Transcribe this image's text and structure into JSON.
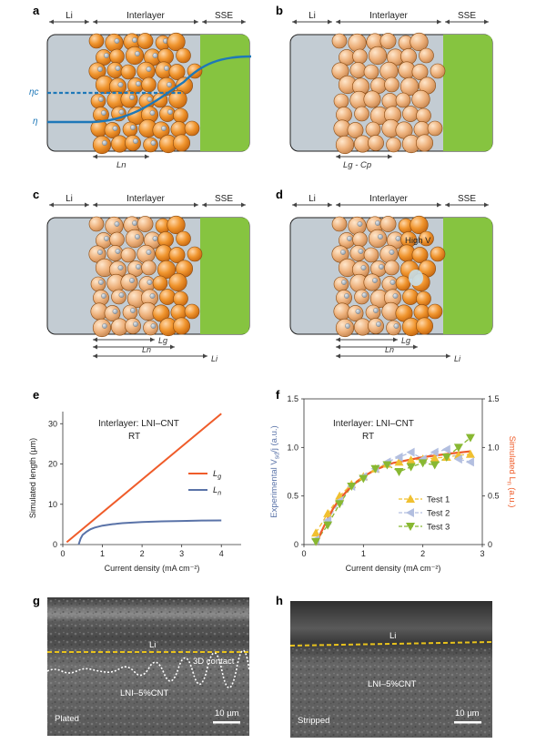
{
  "panels": {
    "a": {
      "label": "a",
      "li": "Li",
      "interlayer": "Interlayer",
      "sse": "SSE",
      "eta_c": "ηc",
      "eta": "η",
      "ln": "Ln"
    },
    "b": {
      "label": "b",
      "li": "Li",
      "interlayer": "Interlayer",
      "sse": "SSE",
      "formula_lg": "Lg",
      "formula_sep": " - ",
      "formula_cp": "Cp"
    },
    "c": {
      "label": "c",
      "li": "Li",
      "interlayer": "Interlayer",
      "sse": "SSE",
      "lg": "Lg",
      "ln": "Ln",
      "li_len": "Li"
    },
    "d": {
      "label": "d",
      "li": "Li",
      "interlayer": "Interlayer",
      "sse": "SSE",
      "high_v": "High V",
      "lg": "Lg",
      "ln": "Ln",
      "li_len": "Li"
    },
    "e": {
      "label": "e",
      "annotation_1": "Interlayer: LNI–CNT",
      "annotation_2": "RT"
    },
    "f": {
      "label": "f",
      "annotation_1": "Interlayer: LNI–CNT",
      "annotation_2": "RT"
    },
    "g": {
      "label": "g",
      "li": "Li",
      "contact": "3D contact",
      "material": "LNI–5%CNT",
      "state": "Plated",
      "scale": "10 µm"
    },
    "h": {
      "label": "h",
      "li": "Li",
      "material": "LNI–5%CNT",
      "state": "Stripped",
      "scale": "10 µm"
    }
  },
  "colors": {
    "li_gray": "#c3ccd3",
    "particle_orange": "#ef8a24",
    "particle_light": "#efb27e",
    "sse_green": "#86c440",
    "curve_blue": "#1e78b8",
    "lg_orange": "#ef5c2a",
    "ln_blue": "#5a73a8",
    "test1": "#f0c030",
    "test2": "#b3bfe0",
    "test3": "#88b832",
    "scale_yellow": "#e8c21c"
  },
  "chart_data": [
    {
      "type": "line",
      "panel": "e",
      "xlabel": "Current density (mA cm⁻²)",
      "ylabel": "Simulated length (µm)",
      "xlim": [
        0,
        4.5
      ],
      "ylim": [
        0,
        33
      ],
      "xticks": [
        "0",
        "1",
        "2",
        "3",
        "4"
      ],
      "yticks": [
        "0",
        "10",
        "20",
        "30"
      ],
      "legend_position": "right",
      "series": [
        {
          "name": "Lg",
          "x": [
            0.1,
            4.0
          ],
          "y": [
            0.6,
            32.5
          ]
        },
        {
          "name": "Ln",
          "x": [
            0.4,
            0.45,
            0.5,
            0.6,
            0.7,
            0.8,
            1.0,
            1.25,
            1.5,
            2.0,
            2.5,
            3.0,
            3.5,
            4.0
          ],
          "y": [
            0,
            1.5,
            2.4,
            3.2,
            3.8,
            4.2,
            4.7,
            5.05,
            5.3,
            5.6,
            5.75,
            5.85,
            5.95,
            6.0
          ]
        }
      ]
    },
    {
      "type": "scatter",
      "panel": "f",
      "xlabel": "Current density (mA cm⁻²)",
      "ylabel_left": "Experimental V",
      "ylabel_left_sub": "sd",
      "ylabel_left_tail": "/j (a.u.)",
      "ylabel_right": "Simulated L",
      "ylabel_right_sub": "n",
      "ylabel_right_tail": " (a.u.)",
      "xlim": [
        0,
        3.0
      ],
      "ylim": [
        0,
        1.5
      ],
      "xticks": [
        "0",
        "1",
        "2",
        "3"
      ],
      "yticks": [
        "0",
        "0.5",
        "1.0",
        "1.5"
      ],
      "legend_position": "bottom-center",
      "curve": {
        "x": [
          0.2,
          0.3,
          0.4,
          0.5,
          0.6,
          0.8,
          1.0,
          1.2,
          1.5,
          2.0,
          2.5,
          2.8
        ],
        "y": [
          0.0,
          0.14,
          0.27,
          0.38,
          0.47,
          0.6,
          0.7,
          0.77,
          0.84,
          0.9,
          0.94,
          0.96
        ]
      },
      "series": [
        {
          "name": "Test 1",
          "marker": "up",
          "x": [
            0.2,
            0.4,
            0.6,
            0.8,
            1.0,
            1.2,
            1.4,
            1.6,
            1.8,
            2.0,
            2.2,
            2.4,
            2.6,
            2.8
          ],
          "y": [
            0.12,
            0.32,
            0.5,
            0.62,
            0.7,
            0.78,
            0.83,
            0.85,
            0.87,
            0.88,
            0.89,
            0.9,
            0.92,
            0.93
          ]
        },
        {
          "name": "Test 2",
          "marker": "left",
          "x": [
            0.2,
            0.4,
            0.6,
            0.8,
            1.0,
            1.2,
            1.4,
            1.6,
            1.8,
            2.0,
            2.2,
            2.4,
            2.6,
            2.8
          ],
          "y": [
            0.05,
            0.25,
            0.45,
            0.6,
            0.7,
            0.78,
            0.85,
            0.9,
            0.95,
            0.88,
            0.95,
            0.98,
            0.88,
            0.85
          ]
        },
        {
          "name": "Test 3",
          "marker": "down",
          "x": [
            0.2,
            0.4,
            0.6,
            0.8,
            1.0,
            1.2,
            1.4,
            1.6,
            1.8,
            2.0,
            2.2,
            2.4,
            2.6,
            2.8
          ],
          "y": [
            0.03,
            0.2,
            0.42,
            0.6,
            0.68,
            0.78,
            0.82,
            0.75,
            0.8,
            0.84,
            0.82,
            0.9,
            1.0,
            1.1
          ]
        }
      ]
    }
  ]
}
